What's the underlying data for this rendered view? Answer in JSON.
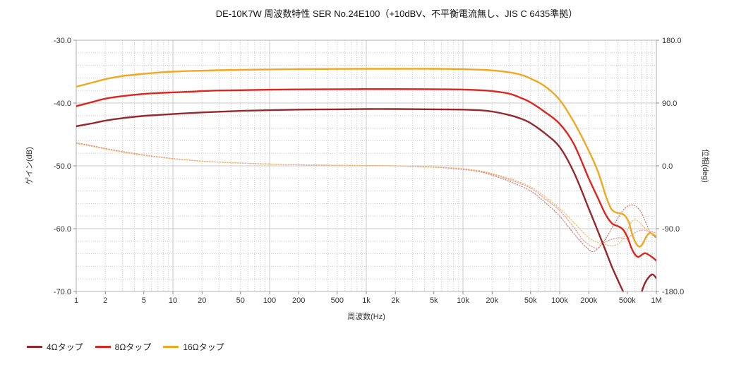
{
  "chart_data": {
    "type": "line",
    "title": "DE-10K7W 周波数特性 SER No.24E100（+10dBV、不平衡電流無し、JIS C 6435準拠）",
    "grid": "major solid, minor dotted",
    "x_axis": {
      "label": "周波数(Hz)",
      "scale": "log",
      "range": [
        1,
        1000000
      ],
      "ticks": [
        {
          "v": 1,
          "label": "1"
        },
        {
          "v": 2,
          "label": "2"
        },
        {
          "v": 5,
          "label": "5"
        },
        {
          "v": 10,
          "label": "10"
        },
        {
          "v": 20,
          "label": "20"
        },
        {
          "v": 50,
          "label": "50"
        },
        {
          "v": 100,
          "label": "100"
        },
        {
          "v": 200,
          "label": "200"
        },
        {
          "v": 500,
          "label": "500"
        },
        {
          "v": 1000,
          "label": "1k"
        },
        {
          "v": 2000,
          "label": "2k"
        },
        {
          "v": 5000,
          "label": "5k"
        },
        {
          "v": 10000,
          "label": "10k"
        },
        {
          "v": 20000,
          "label": "20k"
        },
        {
          "v": 50000,
          "label": "50k"
        },
        {
          "v": 100000,
          "label": "100k"
        },
        {
          "v": 200000,
          "label": "200k"
        },
        {
          "v": 500000,
          "label": "500k"
        },
        {
          "v": 1000000,
          "label": "1M"
        }
      ]
    },
    "y_left_axis": {
      "label": "ゲイン(dB)",
      "range": [
        -70,
        -30
      ],
      "major_step": 10,
      "minor_step": 2,
      "ticks": [
        {
          "v": -30,
          "label": "-30.0"
        },
        {
          "v": -40,
          "label": "-40.0"
        },
        {
          "v": -50,
          "label": "-50.0"
        },
        {
          "v": -60,
          "label": "-60.0"
        },
        {
          "v": -70,
          "label": "-70.0"
        }
      ]
    },
    "y_right_axis": {
      "label": "位相(deg)",
      "range": [
        -180,
        180
      ],
      "major_step": 90,
      "ticks": [
        {
          "v": 180,
          "label": "180.0"
        },
        {
          "v": 90,
          "label": "90.0"
        },
        {
          "v": 0,
          "label": "0.0"
        },
        {
          "v": -90,
          "label": "-90.0"
        },
        {
          "v": -180,
          "label": "-180.0"
        }
      ]
    },
    "legend": [
      {
        "label": "4Ωタップ",
        "color": "#96282D"
      },
      {
        "label": "8Ωタップ",
        "color": "#DC261E"
      },
      {
        "label": "16Ωタップ",
        "color": "#F2A71F"
      }
    ],
    "series": [
      {
        "name": "4Ωタップ 位相",
        "tap": "4ohm",
        "quantity": "phase",
        "axis": "right",
        "style": "dotted",
        "color": "#C2837C",
        "width": 1.2,
        "points": [
          [
            1,
            33
          ],
          [
            1.5,
            28.5
          ],
          [
            2,
            25
          ],
          [
            3,
            20.5
          ],
          [
            5,
            15.6
          ],
          [
            7,
            13
          ],
          [
            10,
            10.4
          ],
          [
            15,
            8.3
          ],
          [
            20,
            6.8
          ],
          [
            30,
            5.4
          ],
          [
            50,
            4.0
          ],
          [
            100,
            2.6
          ],
          [
            200,
            1.6
          ],
          [
            500,
            0.9
          ],
          [
            1000,
            0.4
          ],
          [
            2000,
            0
          ],
          [
            3000,
            -0.8
          ],
          [
            5000,
            -2
          ],
          [
            7000,
            -3.2
          ],
          [
            10000,
            -5.2
          ],
          [
            15000,
            -8.5
          ],
          [
            20000,
            -13.5
          ],
          [
            30000,
            -22
          ],
          [
            50000,
            -36
          ],
          [
            70000,
            -52
          ],
          [
            100000,
            -72
          ],
          [
            140000,
            -97
          ],
          [
            180000,
            -114
          ],
          [
            220000,
            -123
          ],
          [
            260000,
            -115
          ],
          [
            300000,
            -104
          ],
          [
            350000,
            -88
          ],
          [
            400000,
            -75
          ],
          [
            450000,
            -64
          ],
          [
            500000,
            -58
          ],
          [
            550000,
            -56
          ],
          [
            600000,
            -57
          ],
          [
            650000,
            -61
          ],
          [
            700000,
            -67
          ],
          [
            750000,
            -76
          ],
          [
            800000,
            -85
          ],
          [
            850000,
            -93
          ],
          [
            900000,
            -98
          ],
          [
            1000000,
            -104
          ]
        ]
      },
      {
        "name": "8Ωタップ 位相",
        "tap": "8ohm",
        "quantity": "phase",
        "axis": "right",
        "style": "dotted",
        "color": "#EE9490",
        "width": 1.2,
        "points": [
          [
            1,
            32.5
          ],
          [
            1.5,
            28
          ],
          [
            2,
            24.5
          ],
          [
            3,
            20
          ],
          [
            5,
            15.3
          ],
          [
            7,
            12.7
          ],
          [
            10,
            10.2
          ],
          [
            15,
            8.1
          ],
          [
            20,
            6.6
          ],
          [
            30,
            5.3
          ],
          [
            50,
            3.9
          ],
          [
            100,
            2.5
          ],
          [
            200,
            1.5
          ],
          [
            500,
            0.8
          ],
          [
            1000,
            0.4
          ],
          [
            2000,
            0
          ],
          [
            3000,
            -0.7
          ],
          [
            5000,
            -1.7
          ],
          [
            7000,
            -2.8
          ],
          [
            10000,
            -4.5
          ],
          [
            15000,
            -7.5
          ],
          [
            20000,
            -12
          ],
          [
            30000,
            -19.5
          ],
          [
            50000,
            -32
          ],
          [
            70000,
            -47
          ],
          [
            100000,
            -64
          ],
          [
            140000,
            -88
          ],
          [
            180000,
            -108
          ],
          [
            240000,
            -118
          ],
          [
            280000,
            -111
          ],
          [
            320000,
            -107
          ],
          [
            370000,
            -104
          ],
          [
            420000,
            -103
          ],
          [
            470000,
            -104
          ],
          [
            520000,
            -102
          ],
          [
            570000,
            -98
          ],
          [
            620000,
            -94.5
          ],
          [
            680000,
            -92.5
          ],
          [
            740000,
            -92
          ],
          [
            800000,
            -93
          ],
          [
            900000,
            -94.5
          ],
          [
            1000000,
            -96
          ]
        ]
      },
      {
        "name": "16Ωタップ 位相",
        "tap": "16ohm",
        "quantity": "phase",
        "axis": "right",
        "style": "dotted",
        "color": "#F3BA66",
        "width": 1.2,
        "points": [
          [
            1,
            32
          ],
          [
            1.5,
            27.5
          ],
          [
            2,
            24
          ],
          [
            3,
            19.5
          ],
          [
            5,
            15
          ],
          [
            7,
            12.5
          ],
          [
            10,
            10
          ],
          [
            15,
            8
          ],
          [
            20,
            6.5
          ],
          [
            30,
            5.2
          ],
          [
            50,
            3.8
          ],
          [
            100,
            2.4
          ],
          [
            200,
            1.5
          ],
          [
            500,
            0.8
          ],
          [
            1000,
            0.4
          ],
          [
            2000,
            0
          ],
          [
            3000,
            -0.6
          ],
          [
            5000,
            -1.5
          ],
          [
            7000,
            -2.5
          ],
          [
            10000,
            -4
          ],
          [
            15000,
            -7
          ],
          [
            20000,
            -11
          ],
          [
            30000,
            -18
          ],
          [
            50000,
            -30
          ],
          [
            70000,
            -44
          ],
          [
            100000,
            -61
          ],
          [
            140000,
            -81
          ],
          [
            200000,
            -103
          ],
          [
            250000,
            -110
          ],
          [
            300000,
            -113
          ],
          [
            350000,
            -114.5
          ],
          [
            400000,
            -112
          ],
          [
            450000,
            -105
          ],
          [
            500000,
            -93
          ],
          [
            550000,
            -81
          ],
          [
            600000,
            -77.5
          ],
          [
            650000,
            -79.5
          ],
          [
            700000,
            -84
          ],
          [
            800000,
            -92
          ],
          [
            900000,
            -97
          ],
          [
            1000000,
            -100
          ]
        ]
      },
      {
        "name": "4Ωタップ ゲイン",
        "tap": "4ohm",
        "quantity": "gain",
        "axis": "left",
        "style": "solid",
        "color": "#96282D",
        "width": 2.4,
        "points": [
          [
            1,
            -43.7
          ],
          [
            1.5,
            -43.2
          ],
          [
            2,
            -42.8
          ],
          [
            3,
            -42.4
          ],
          [
            5,
            -42.05
          ],
          [
            7,
            -41.9
          ],
          [
            10,
            -41.75
          ],
          [
            15,
            -41.6
          ],
          [
            20,
            -41.5
          ],
          [
            30,
            -41.38
          ],
          [
            50,
            -41.25
          ],
          [
            100,
            -41.13
          ],
          [
            200,
            -41.05
          ],
          [
            500,
            -41.0
          ],
          [
            1000,
            -40.95
          ],
          [
            2000,
            -40.95
          ],
          [
            5000,
            -41.0
          ],
          [
            10000,
            -41.05
          ],
          [
            15000,
            -41.15
          ],
          [
            20000,
            -41.35
          ],
          [
            30000,
            -41.9
          ],
          [
            40000,
            -42.5
          ],
          [
            50000,
            -43.2
          ],
          [
            70000,
            -44.8
          ],
          [
            100000,
            -47.0
          ],
          [
            140000,
            -51.0
          ],
          [
            200000,
            -56.8
          ],
          [
            250000,
            -60.5
          ],
          [
            300000,
            -63.6
          ],
          [
            350000,
            -66.2
          ],
          [
            400000,
            -68.2
          ],
          [
            450000,
            -69.9
          ],
          [
            500000,
            -71.2
          ],
          [
            560000,
            -72.2
          ],
          [
            630000,
            -72.0
          ],
          [
            700000,
            -70.2
          ],
          [
            760000,
            -68.7
          ],
          [
            850000,
            -67.6
          ],
          [
            920000,
            -67.3
          ],
          [
            1000000,
            -67.9
          ]
        ]
      },
      {
        "name": "8Ωタップ ゲイン",
        "tap": "8ohm",
        "quantity": "gain",
        "axis": "left",
        "style": "solid",
        "color": "#DC261E",
        "width": 2.4,
        "points": [
          [
            1,
            -40.5
          ],
          [
            1.5,
            -39.8
          ],
          [
            2,
            -39.3
          ],
          [
            3,
            -38.9
          ],
          [
            5,
            -38.55
          ],
          [
            7,
            -38.4
          ],
          [
            10,
            -38.3
          ],
          [
            15,
            -38.2
          ],
          [
            20,
            -38.1
          ],
          [
            30,
            -38.0
          ],
          [
            50,
            -37.95
          ],
          [
            100,
            -37.88
          ],
          [
            200,
            -37.83
          ],
          [
            500,
            -37.8
          ],
          [
            1000,
            -37.78
          ],
          [
            2000,
            -37.78
          ],
          [
            5000,
            -37.8
          ],
          [
            10000,
            -37.85
          ],
          [
            15000,
            -37.95
          ],
          [
            20000,
            -38.1
          ],
          [
            30000,
            -38.5
          ],
          [
            40000,
            -39.2
          ],
          [
            50000,
            -39.9
          ],
          [
            70000,
            -41.4
          ],
          [
            100000,
            -43.3
          ],
          [
            140000,
            -46.5
          ],
          [
            200000,
            -52.0
          ],
          [
            250000,
            -55.2
          ],
          [
            300000,
            -57.8
          ],
          [
            350000,
            -59.2
          ],
          [
            400000,
            -59.6
          ],
          [
            450000,
            -60.1
          ],
          [
            500000,
            -61.3
          ],
          [
            550000,
            -63.0
          ],
          [
            600000,
            -64.1
          ],
          [
            650000,
            -64.5
          ],
          [
            700000,
            -64.2
          ],
          [
            760000,
            -63.9
          ],
          [
            820000,
            -64.1
          ],
          [
            900000,
            -64.5
          ],
          [
            1000000,
            -65.1
          ]
        ]
      },
      {
        "name": "16Ωタップ ゲイン",
        "tap": "16ohm",
        "quantity": "gain",
        "axis": "left",
        "style": "solid",
        "color": "#F2A71F",
        "width": 2.4,
        "points": [
          [
            1,
            -37.4
          ],
          [
            1.5,
            -36.7
          ],
          [
            2,
            -36.2
          ],
          [
            3,
            -35.7
          ],
          [
            5,
            -35.35
          ],
          [
            7,
            -35.15
          ],
          [
            10,
            -35.0
          ],
          [
            15,
            -34.9
          ],
          [
            20,
            -34.85
          ],
          [
            30,
            -34.78
          ],
          [
            50,
            -34.72
          ],
          [
            100,
            -34.65
          ],
          [
            200,
            -34.6
          ],
          [
            500,
            -34.57
          ],
          [
            1000,
            -34.55
          ],
          [
            2000,
            -34.55
          ],
          [
            5000,
            -34.55
          ],
          [
            10000,
            -34.6
          ],
          [
            15000,
            -34.7
          ],
          [
            20000,
            -34.8
          ],
          [
            30000,
            -35.1
          ],
          [
            40000,
            -35.5
          ],
          [
            50000,
            -36.1
          ],
          [
            70000,
            -37.3
          ],
          [
            100000,
            -39.5
          ],
          [
            140000,
            -43.0
          ],
          [
            200000,
            -47.6
          ],
          [
            250000,
            -51.0
          ],
          [
            300000,
            -54.8
          ],
          [
            340000,
            -56.8
          ],
          [
            380000,
            -57.4
          ],
          [
            430000,
            -57.6
          ],
          [
            470000,
            -57.9
          ],
          [
            520000,
            -59.0
          ],
          [
            560000,
            -60.8
          ],
          [
            600000,
            -62.0
          ],
          [
            650000,
            -62.8
          ],
          [
            700000,
            -62.7
          ],
          [
            750000,
            -61.9
          ],
          [
            800000,
            -61.1
          ],
          [
            860000,
            -60.7
          ],
          [
            920000,
            -60.9
          ],
          [
            1000000,
            -61.3
          ]
        ]
      }
    ]
  }
}
